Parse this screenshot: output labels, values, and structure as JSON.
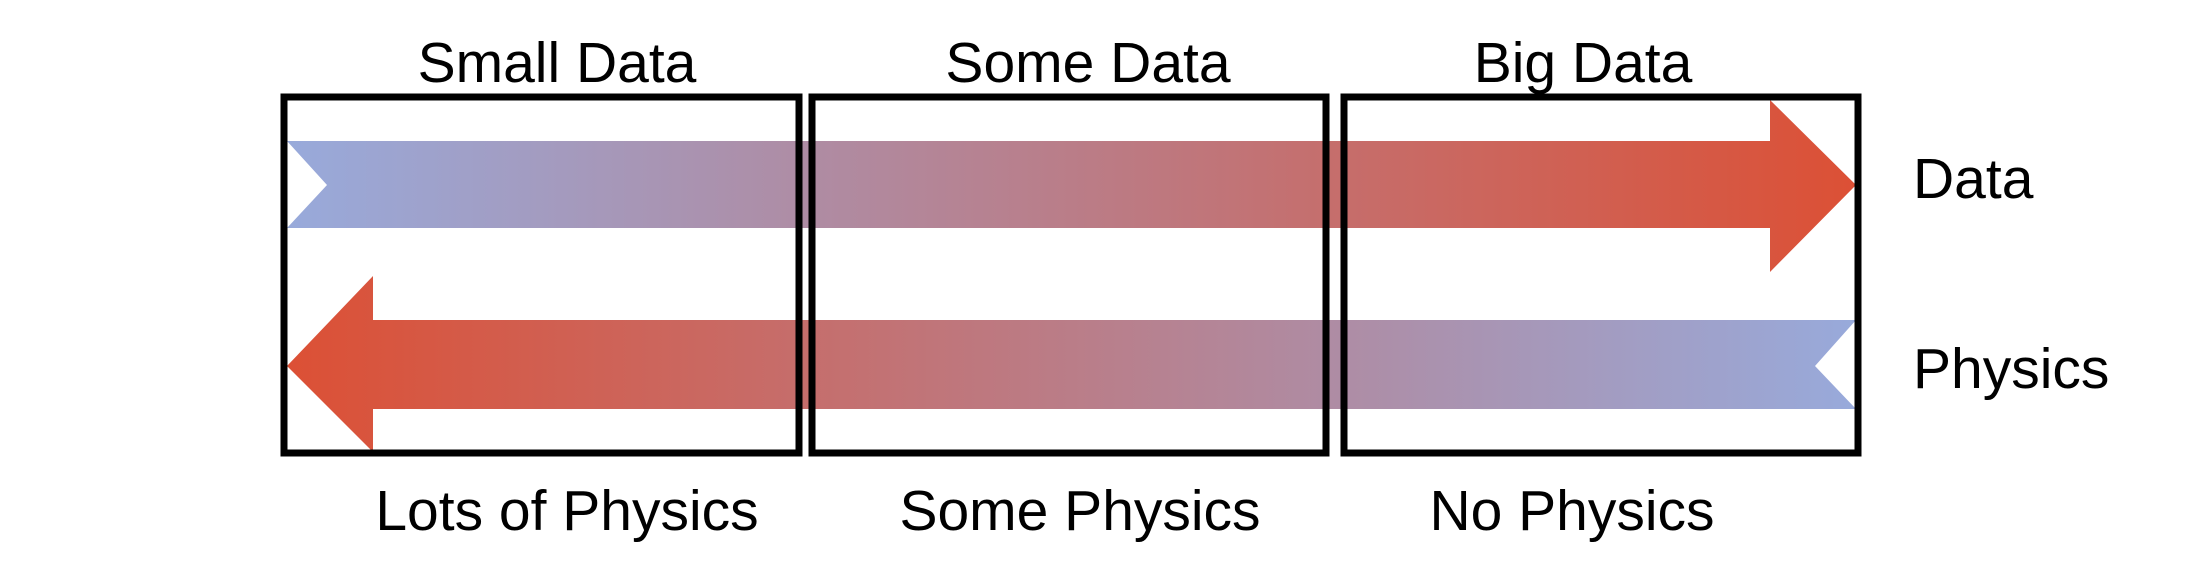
{
  "columns": [
    {
      "top_label": "Small Data",
      "bottom_label": "Lots of Physics"
    },
    {
      "top_label": "Some Data",
      "bottom_label": "Some Physics"
    },
    {
      "top_label": "Big Data",
      "bottom_label": "No Physics"
    }
  ],
  "arrows": {
    "data": {
      "label": "Data",
      "direction": "right"
    },
    "physics": {
      "label": "Physics",
      "direction": "left"
    }
  },
  "colors": {
    "low": "#98aadb",
    "high": "#dc5035",
    "box_border": "#000000"
  }
}
